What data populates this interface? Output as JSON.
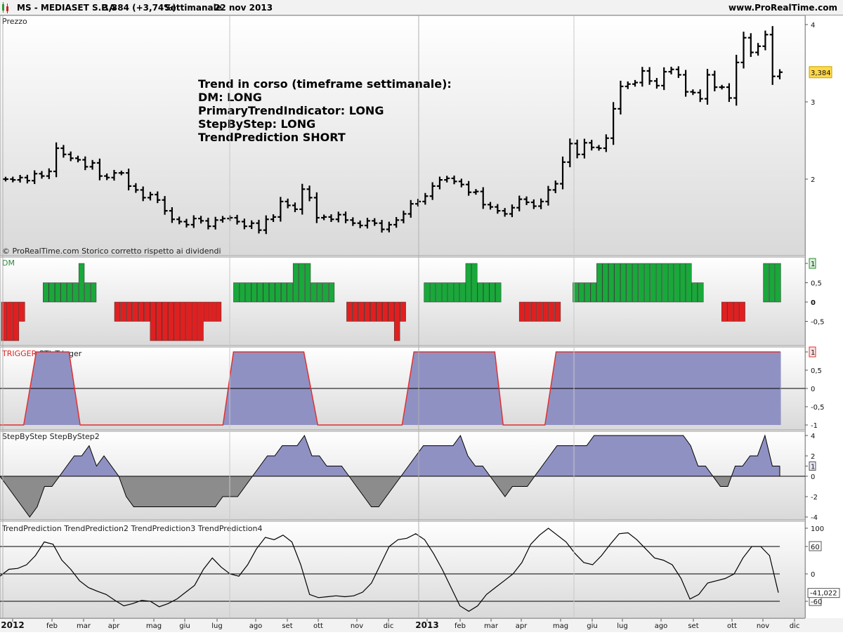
{
  "header": {
    "symbol": "MS - MEDIASET S.P.A",
    "quote": "3,384 (+3,74%)",
    "timeframe": "Settimanale",
    "date": "22 nov 2013",
    "website": "www.ProRealTime.com"
  },
  "footer_note": "© ProRealTime.com  Storico corretto rispetto ai dividendi",
  "annotation": [
    "Trend in corso (timeframe settimanale):",
    "DM: LONG",
    "PrimaryTrendIndicator: LONG",
    "StepByStep: LONG",
    "TrendPrediction SHORT"
  ],
  "x_axis": {
    "labels": [
      "2012",
      "feb",
      "mar",
      "apr",
      "mag",
      "giu",
      "lug",
      "ago",
      "set",
      "ott",
      "nov",
      "dic",
      "2013",
      "feb",
      "mar",
      "apr",
      "mag",
      "giu",
      "lug",
      "ago",
      "set",
      "ott",
      "nov",
      "dic"
    ],
    "bold_labels": [
      "2012",
      "2013"
    ]
  },
  "chart_data": [
    {
      "type": "ohlc",
      "panel_title": "Prezzo",
      "y_ticks": [
        "2",
        "3",
        "4"
      ],
      "ylim": [
        1.0,
        4.05
      ],
      "last_value_label": "3,384",
      "last_value": 3.384,
      "bar_color": "#000000",
      "close": [
        2.0,
        1.99,
        2.02,
        1.98,
        2.07,
        2.04,
        2.1,
        2.4,
        2.32,
        2.27,
        2.25,
        2.16,
        2.21,
        2.04,
        2.02,
        2.08,
        2.08,
        1.91,
        1.86,
        1.76,
        1.8,
        1.73,
        1.59,
        1.48,
        1.45,
        1.41,
        1.49,
        1.46,
        1.39,
        1.47,
        1.49,
        1.5,
        1.45,
        1.39,
        1.43,
        1.34,
        1.48,
        1.51,
        1.71,
        1.66,
        1.61,
        1.87,
        1.76,
        1.5,
        1.51,
        1.48,
        1.54,
        1.47,
        1.43,
        1.4,
        1.46,
        1.43,
        1.35,
        1.41,
        1.47,
        1.55,
        1.68,
        1.71,
        1.78,
        1.91,
        1.99,
        2.01,
        1.97,
        1.93,
        1.83,
        1.84,
        1.67,
        1.64,
        1.59,
        1.55,
        1.63,
        1.74,
        1.7,
        1.65,
        1.71,
        1.86,
        1.94,
        2.22,
        2.46,
        2.32,
        2.47,
        2.41,
        2.4,
        2.53,
        2.91,
        3.2,
        3.23,
        3.25,
        3.4,
        3.27,
        3.21,
        3.39,
        3.42,
        3.35,
        3.13,
        3.12,
        3.04,
        3.35,
        3.19,
        3.19,
        3.05,
        3.51,
        3.83,
        3.64,
        3.72,
        3.87,
        3.33,
        3.384
      ]
    },
    {
      "type": "bar",
      "panel_title": "DM",
      "y_ticks": [
        "1",
        "0,5",
        "0",
        "-0,5"
      ],
      "ylim": [
        -1.0,
        1.0
      ],
      "last_value_label": "1",
      "positive_color": "#19a83a",
      "negative_color": "#e02020",
      "values": [
        -1,
        -1,
        -1,
        -0.5,
        0,
        0,
        0,
        0.5,
        0.5,
        0.5,
        0.5,
        0.5,
        0.5,
        1,
        0.5,
        0.5,
        0,
        0,
        0,
        -0.5,
        -0.5,
        -0.5,
        -0.5,
        -0.5,
        -0.5,
        -1,
        -1,
        -1,
        -1,
        -1,
        -1,
        -1,
        -1,
        -1,
        -0.5,
        -0.5,
        -0.5,
        0,
        0,
        0.5,
        0.5,
        0.5,
        0.5,
        0.5,
        0.5,
        0.5,
        0.5,
        0.5,
        0.5,
        1,
        1,
        1,
        0.5,
        0.5,
        0.5,
        0.5,
        0,
        0,
        -0.5,
        -0.5,
        -0.5,
        -0.5,
        -0.5,
        -0.5,
        -0.5,
        -0.5,
        -1,
        -0.5,
        0,
        0,
        0,
        0.5,
        0.5,
        0.5,
        0.5,
        0.5,
        0.5,
        0.5,
        1,
        1,
        0.5,
        0.5,
        0.5,
        0.5,
        0,
        0,
        0,
        -0.5,
        -0.5,
        -0.5,
        -0.5,
        -0.5,
        -0.5,
        -0.5,
        0,
        0,
        0.5,
        0.5,
        0.5,
        0.5,
        1,
        1,
        1,
        1,
        1,
        1,
        1,
        1,
        1,
        1,
        1,
        1,
        1,
        1,
        1,
        1,
        0.5,
        0.5,
        0,
        0,
        0,
        -0.5,
        -0.5,
        -0.5,
        -0.5,
        0,
        0,
        0,
        1,
        1,
        1
      ]
    },
    {
      "type": "area",
      "panel_title": "TRIGGER PTI_Trigger",
      "title_parts": [
        "TRIGGER",
        "PTI_Trigger"
      ],
      "y_ticks": [
        "1",
        "0,5",
        "0",
        "-0,5",
        "-1"
      ],
      "ylim": [
        -1.0,
        1.0
      ],
      "last_value_label": "1",
      "line_color": "#e03030",
      "fill_color": "#9091c3",
      "x": [
        0,
        3.4,
        5.2,
        9.9,
        11.5,
        32,
        33.5,
        43.6,
        45.6,
        57.7,
        59.4,
        71,
        72.2,
        78.2,
        79.8,
        112
      ],
      "values": [
        -1,
        -1,
        1,
        1,
        -1,
        -1,
        1,
        1,
        -1,
        -1,
        1,
        1,
        -1,
        -1,
        1,
        1
      ]
    },
    {
      "type": "area",
      "panel_title": "StepByStep StepByStep2",
      "y_ticks": [
        "4",
        "2",
        "1",
        "0",
        "-2",
        "-4"
      ],
      "ylim": [
        -4.4,
        4.4
      ],
      "last_value_label": "1",
      "line_color": "#000000",
      "pos_fill": "#9091c3",
      "neg_fill": "#8c8c8c",
      "values": [
        0,
        -1,
        -2,
        -3,
        -4,
        -3,
        -1,
        -1,
        0,
        1,
        2,
        2,
        3,
        1,
        2,
        1,
        0,
        -2,
        -3,
        -3,
        -3,
        -3,
        -3,
        -3,
        -3,
        -3,
        -3,
        -3,
        -3,
        -3,
        -2,
        -2,
        -2,
        -1,
        0,
        1,
        2,
        2,
        3,
        3,
        3,
        4,
        2,
        2,
        1,
        1,
        1,
        0,
        -1,
        -2,
        -3,
        -3,
        -2,
        -1,
        0,
        1,
        2,
        3,
        3,
        3,
        3,
        3,
        4,
        2,
        1,
        1,
        0,
        -1,
        -2,
        -1,
        -1,
        -1,
        0,
        1,
        2,
        3,
        3,
        3,
        3,
        3,
        4,
        4,
        4,
        4,
        4,
        4,
        4,
        4,
        4,
        4,
        4,
        4,
        4,
        3,
        1,
        1,
        0,
        -1,
        -1,
        1,
        1,
        2,
        2,
        4,
        1,
        1
      ]
    },
    {
      "type": "line",
      "panel_title": "TrendPrediction TrendPrediction2 TrendPrediction3 TrendPrediction4",
      "y_ticks": [
        "100",
        "60",
        "0",
        "-60"
      ],
      "ylim": [
        -100,
        105
      ],
      "last_value_label": "-41,022",
      "line_color": "#000000",
      "reference_lines": [
        60,
        0,
        -60
      ],
      "values": [
        -5,
        10,
        12,
        20,
        40,
        70,
        65,
        30,
        10,
        -15,
        -30,
        -38,
        -45,
        -58,
        -70,
        -65,
        -58,
        -60,
        -72,
        -65,
        -55,
        -40,
        -25,
        10,
        35,
        15,
        0,
        -5,
        20,
        55,
        80,
        75,
        85,
        70,
        20,
        -45,
        -52,
        -50,
        -48,
        -50,
        -48,
        -40,
        -20,
        20,
        60,
        75,
        78,
        88,
        75,
        45,
        10,
        -30,
        -70,
        -82,
        -70,
        -45,
        -30,
        -15,
        0,
        25,
        65,
        85,
        100,
        85,
        70,
        45,
        25,
        20,
        40,
        65,
        88,
        90,
        75,
        55,
        35,
        30,
        20,
        -10,
        -55,
        -45,
        -20,
        -15,
        -10,
        0,
        35,
        60,
        60,
        40,
        -41.022
      ]
    }
  ]
}
